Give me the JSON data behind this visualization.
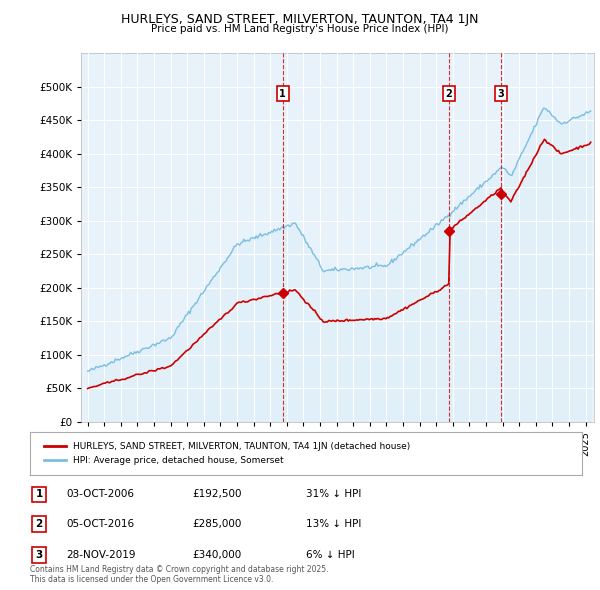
{
  "title": "HURLEYS, SAND STREET, MILVERTON, TAUNTON, TA4 1JN",
  "subtitle": "Price paid vs. HM Land Registry's House Price Index (HPI)",
  "legend_label_red": "HURLEYS, SAND STREET, MILVERTON, TAUNTON, TA4 1JN (detached house)",
  "legend_label_blue": "HPI: Average price, detached house, Somerset",
  "footnote": "Contains HM Land Registry data © Crown copyright and database right 2025.\nThis data is licensed under the Open Government Licence v3.0.",
  "sales": [
    {
      "num": 1,
      "date": "03-OCT-2006",
      "price": 192500,
      "hpi_diff": "31% ↓ HPI",
      "x": 2006.75
    },
    {
      "num": 2,
      "date": "05-OCT-2016",
      "price": 285000,
      "hpi_diff": "13% ↓ HPI",
      "x": 2016.75
    },
    {
      "num": 3,
      "date": "28-NOV-2019",
      "price": 340000,
      "hpi_diff": "6% ↓ HPI",
      "x": 2019.9
    }
  ],
  "red_color": "#cc0000",
  "blue_color": "#7bbfe0",
  "blue_fill": "#ddeef8",
  "dashed_color": "#cc0000",
  "ylim": [
    0,
    550000
  ],
  "xlim": [
    1994.6,
    2025.5
  ],
  "yticks": [
    0,
    50000,
    100000,
    150000,
    200000,
    250000,
    300000,
    350000,
    400000,
    450000,
    500000
  ],
  "background_color": "#ffffff",
  "plot_bg": "#e8f2fa",
  "grid_color": "#ffffff"
}
